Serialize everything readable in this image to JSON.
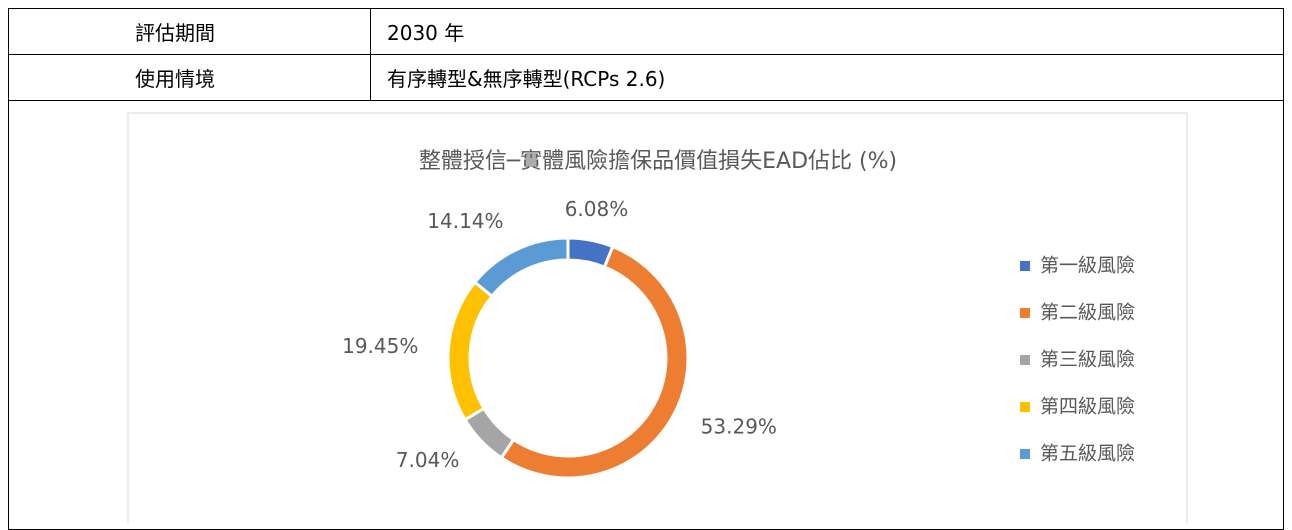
{
  "table": {
    "rows": [
      [
        "評估期間",
        "2030 年"
      ],
      [
        "使用情境",
        "有序轉型&無序轉型(RCPs 2.6)"
      ]
    ]
  },
  "chart_data": {
    "type": "donut",
    "title": "整體授信─實體風險擔保品價值損失EAD佔比 (%)",
    "categories": [
      "第一級風險",
      "第二級風險",
      "第三級風險",
      "第四級風險",
      "第五級風險"
    ],
    "values": [
      6.08,
      53.29,
      7.04,
      19.45,
      14.14
    ],
    "value_labels": [
      "6.08%",
      "53.29%",
      "7.04%",
      "19.45%",
      "14.14%"
    ],
    "colors": [
      "#4472c4",
      "#ed7d31",
      "#a5a5a5",
      "#ffc000",
      "#5b9bd5"
    ],
    "legend": "right"
  }
}
